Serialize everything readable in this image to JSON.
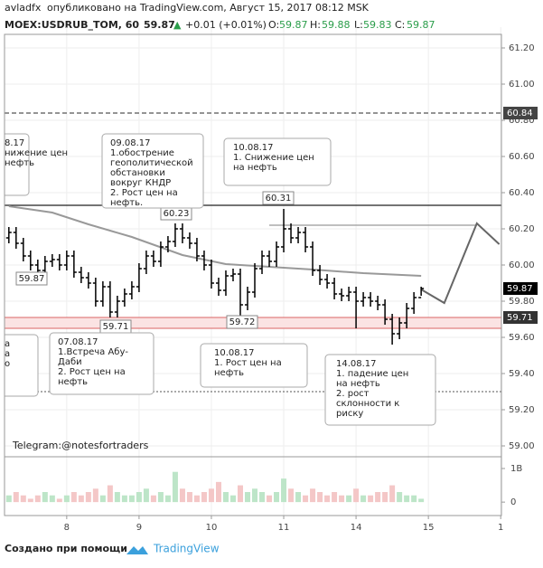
{
  "header": {
    "author": "avladfx",
    "published": "опубликовано на TradingView.com, Август 15, 2017 08:12 MSK",
    "symbol": "MOEX:USDRUB_TOM, 60",
    "last": 59.87,
    "arrow": "▲",
    "change": "+0.01 (+0.01%)",
    "o_label": "O:",
    "open": 59.87,
    "h_label": "H:",
    "high": 59.88,
    "l_label": "L:",
    "low": 59.83,
    "c_label": "C:",
    "close": 59.87
  },
  "footer": {
    "watermark": "Telegram:@notesfortraders",
    "created_by": "Создано при помощи",
    "brand": "TradingView"
  },
  "chart_data": {
    "type": "ohlc",
    "x": [
      0,
      1,
      2,
      3,
      4,
      5,
      6,
      7,
      8,
      9,
      10,
      11,
      12,
      13,
      14,
      15,
      16,
      17,
      18,
      19,
      20,
      21,
      22,
      23,
      24,
      25,
      26,
      27,
      28,
      29,
      30,
      31,
      32,
      33,
      34,
      35,
      36,
      37,
      38,
      39,
      40,
      41,
      42,
      43,
      44,
      45,
      46,
      47,
      48,
      49,
      50,
      51,
      52,
      53,
      54,
      55,
      56,
      57
    ],
    "open": [
      60.15,
      60.18,
      60.12,
      60.05,
      60.0,
      59.97,
      60.02,
      60.03,
      60.0,
      60.05,
      59.96,
      59.93,
      59.9,
      59.8,
      59.88,
      59.74,
      59.8,
      59.84,
      59.88,
      59.98,
      60.05,
      60.02,
      60.1,
      60.13,
      60.2,
      60.15,
      60.12,
      60.05,
      60.0,
      59.9,
      59.86,
      59.94,
      59.95,
      59.78,
      59.85,
      59.98,
      60.05,
      60.02,
      60.1,
      60.2,
      60.15,
      60.18,
      60.1,
      59.97,
      59.92,
      59.9,
      59.84,
      59.83,
      59.85,
      59.8,
      59.82,
      59.8,
      59.78,
      59.7,
      59.62,
      59.68,
      59.76,
      59.82
    ],
    "high": [
      60.21,
      60.21,
      60.15,
      60.08,
      60.03,
      60.05,
      60.06,
      60.06,
      60.08,
      60.08,
      59.99,
      59.96,
      59.93,
      59.91,
      59.91,
      59.83,
      59.87,
      59.91,
      60.01,
      60.08,
      60.08,
      60.13,
      60.16,
      60.23,
      60.23,
      60.18,
      60.15,
      60.08,
      60.03,
      59.93,
      59.97,
      59.98,
      59.98,
      59.88,
      60.01,
      60.08,
      60.08,
      60.13,
      60.31,
      60.23,
      60.21,
      60.21,
      60.13,
      60.0,
      59.95,
      59.93,
      59.87,
      59.88,
      59.88,
      59.85,
      59.85,
      59.83,
      59.81,
      59.73,
      59.71,
      59.79,
      59.85,
      59.88
    ],
    "low": [
      60.12,
      60.09,
      60.02,
      59.97,
      59.94,
      59.94,
      59.99,
      59.97,
      59.97,
      59.93,
      59.9,
      59.87,
      59.77,
      59.77,
      59.71,
      59.71,
      59.77,
      59.81,
      59.85,
      59.95,
      59.99,
      59.99,
      60.07,
      60.1,
      60.12,
      60.09,
      60.02,
      59.97,
      59.87,
      59.83,
      59.83,
      59.91,
      59.72,
      59.75,
      59.82,
      59.95,
      59.99,
      59.99,
      60.07,
      60.12,
      60.12,
      60.07,
      59.94,
      59.89,
      59.87,
      59.81,
      59.8,
      59.8,
      59.65,
      59.77,
      59.77,
      59.75,
      59.67,
      59.56,
      59.59,
      59.65,
      59.73,
      59.83
    ],
    "close": [
      60.18,
      60.12,
      60.05,
      60.0,
      59.97,
      60.02,
      60.03,
      60.0,
      60.05,
      59.96,
      59.93,
      59.9,
      59.8,
      59.88,
      59.74,
      59.8,
      59.84,
      59.88,
      59.98,
      60.05,
      60.02,
      60.1,
      60.13,
      60.2,
      60.15,
      60.12,
      60.05,
      60.0,
      59.9,
      59.86,
      59.94,
      59.95,
      59.78,
      59.85,
      59.98,
      60.05,
      60.02,
      60.1,
      60.2,
      60.15,
      60.18,
      60.1,
      59.97,
      59.92,
      59.9,
      59.84,
      59.83,
      59.85,
      59.8,
      59.82,
      59.8,
      59.78,
      59.7,
      59.62,
      59.68,
      59.76,
      59.82,
      59.87
    ],
    "color": "#000000",
    "volume": [
      200000000.0,
      300000000.0,
      200000000.0,
      100000000.0,
      200000000.0,
      300000000.0,
      200000000.0,
      100000000.0,
      200000000.0,
      300000000.0,
      200000000.0,
      300000000.0,
      400000000.0,
      200000000.0,
      500000000.0,
      300000000.0,
      200000000.0,
      200000000.0,
      300000000.0,
      400000000.0,
      200000000.0,
      300000000.0,
      200000000.0,
      900000000.0,
      400000000.0,
      300000000.0,
      200000000.0,
      300000000.0,
      400000000.0,
      600000000.0,
      300000000.0,
      200000000.0,
      500000000.0,
      300000000.0,
      400000000.0,
      300000000.0,
      200000000.0,
      300000000.0,
      700000000.0,
      400000000.0,
      300000000.0,
      200000000.0,
      400000000.0,
      300000000.0,
      200000000.0,
      300000000.0,
      200000000.0,
      200000000.0,
      400000000.0,
      200000000.0,
      200000000.0,
      300000000.0,
      300000000.0,
      500000000.0,
      300000000.0,
      200000000.0,
      200000000.0,
      100000000.0
    ],
    "volume_ylim": [
      -400000000.0,
      1350000000.0
    ],
    "volume_yticks": [
      {
        "value": 1000000000.0,
        "label": "1B"
      },
      0
    ],
    "up_volume_color": "#bde5c8",
    "down_volume_color": "#f4c7c7",
    "ma": {
      "x": [
        0,
        6,
        11,
        17,
        24,
        30,
        36,
        42,
        49,
        57
      ],
      "values": [
        60.325,
        60.29,
        60.225,
        60.155,
        60.055,
        60.005,
        59.99,
        59.975,
        59.955,
        59.94
      ],
      "color": "#999999"
    },
    "projection": {
      "x": [
        57,
        60.2,
        64.7,
        67.8
      ],
      "values": [
        59.865,
        59.79,
        60.23,
        60.115
      ],
      "color": "#666666"
    },
    "resistance": {
      "x": [
        36,
        64.7
      ],
      "values": [
        60.22,
        60.22
      ],
      "color": "#aaaaaa"
    },
    "levels": [
      {
        "value": 60.84,
        "style": "dashed",
        "color": "#555555"
      },
      {
        "value": 60.33,
        "style": "solid",
        "color": "#222222"
      },
      {
        "value": 59.71,
        "style": "solid",
        "color": "#e08080"
      },
      {
        "value": 59.65,
        "style": "solid",
        "color": "#e08080"
      },
      {
        "value": 59.3,
        "style": "dotted",
        "color": "#777777"
      }
    ],
    "band": {
      "values": [
        59.65,
        59.71
      ],
      "color": "#fbe3e3"
    },
    "price_labels": [
      60.23,
      60.31,
      59.87,
      59.71,
      59.72
    ],
    "axis_badges": [
      {
        "value": 60.84,
        "color": "#444444"
      },
      {
        "value": 59.87,
        "color": "#000000"
      },
      {
        "value": 59.71,
        "color": "#333333"
      }
    ],
    "annotations": [
      [
        "8.17",
        "нижение цен",
        "нефть"
      ],
      [
        "09.08.17",
        "1.обострение",
        "геополитической",
        "обстановки",
        "вокруг КНДР",
        "2. Рост цен на",
        "нефть."
      ],
      [
        "10.08.17",
        "1. Снижение цен",
        "на нефть"
      ],
      [
        "а",
        "а",
        "о"
      ],
      [
        "07.08.17",
        "1.Встреча Абу-",
        "Даби",
        "2. Рост цен на",
        "нефть"
      ],
      [
        "10.08.17",
        "1. Рост цен на",
        "нефть"
      ],
      [
        "14.08.17",
        "1. падение цен",
        "на нефть",
        "2. рост",
        "склонности к",
        "риску"
      ]
    ],
    "xlim": [
      -0.6,
      68.1
    ],
    "xticks": [
      {
        "value": 8,
        "label": "8"
      },
      {
        "value": 18,
        "label": "9"
      },
      {
        "value": 28,
        "label": "10"
      },
      {
        "value": 38,
        "label": "11"
      },
      {
        "value": 48,
        "label": "14"
      },
      {
        "value": 58,
        "label": "15"
      },
      {
        "value": 68,
        "label": "1"
      }
    ],
    "ylim": [
      58.94,
      61.315
    ],
    "yticks": [
      {
        "value": 59,
        "label": "59.00"
      },
      {
        "value": 59.2,
        "label": "59.20"
      },
      {
        "value": 59.4,
        "label": "59.40"
      },
      {
        "value": 59.6,
        "label": "59.60"
      },
      {
        "value": 59.8,
        "label": "59.80"
      },
      {
        "value": 60,
        "label": "60.00"
      },
      {
        "value": 60.2,
        "label": "60.20"
      },
      {
        "value": 60.4,
        "label": "60.40"
      },
      {
        "value": 60.6,
        "label": "60.60"
      },
      {
        "value": 60.8,
        "label": "60.80"
      },
      {
        "value": 61,
        "label": "61.00"
      },
      {
        "value": 61.2,
        "label": "61.20"
      }
    ],
    "grid": true
  }
}
